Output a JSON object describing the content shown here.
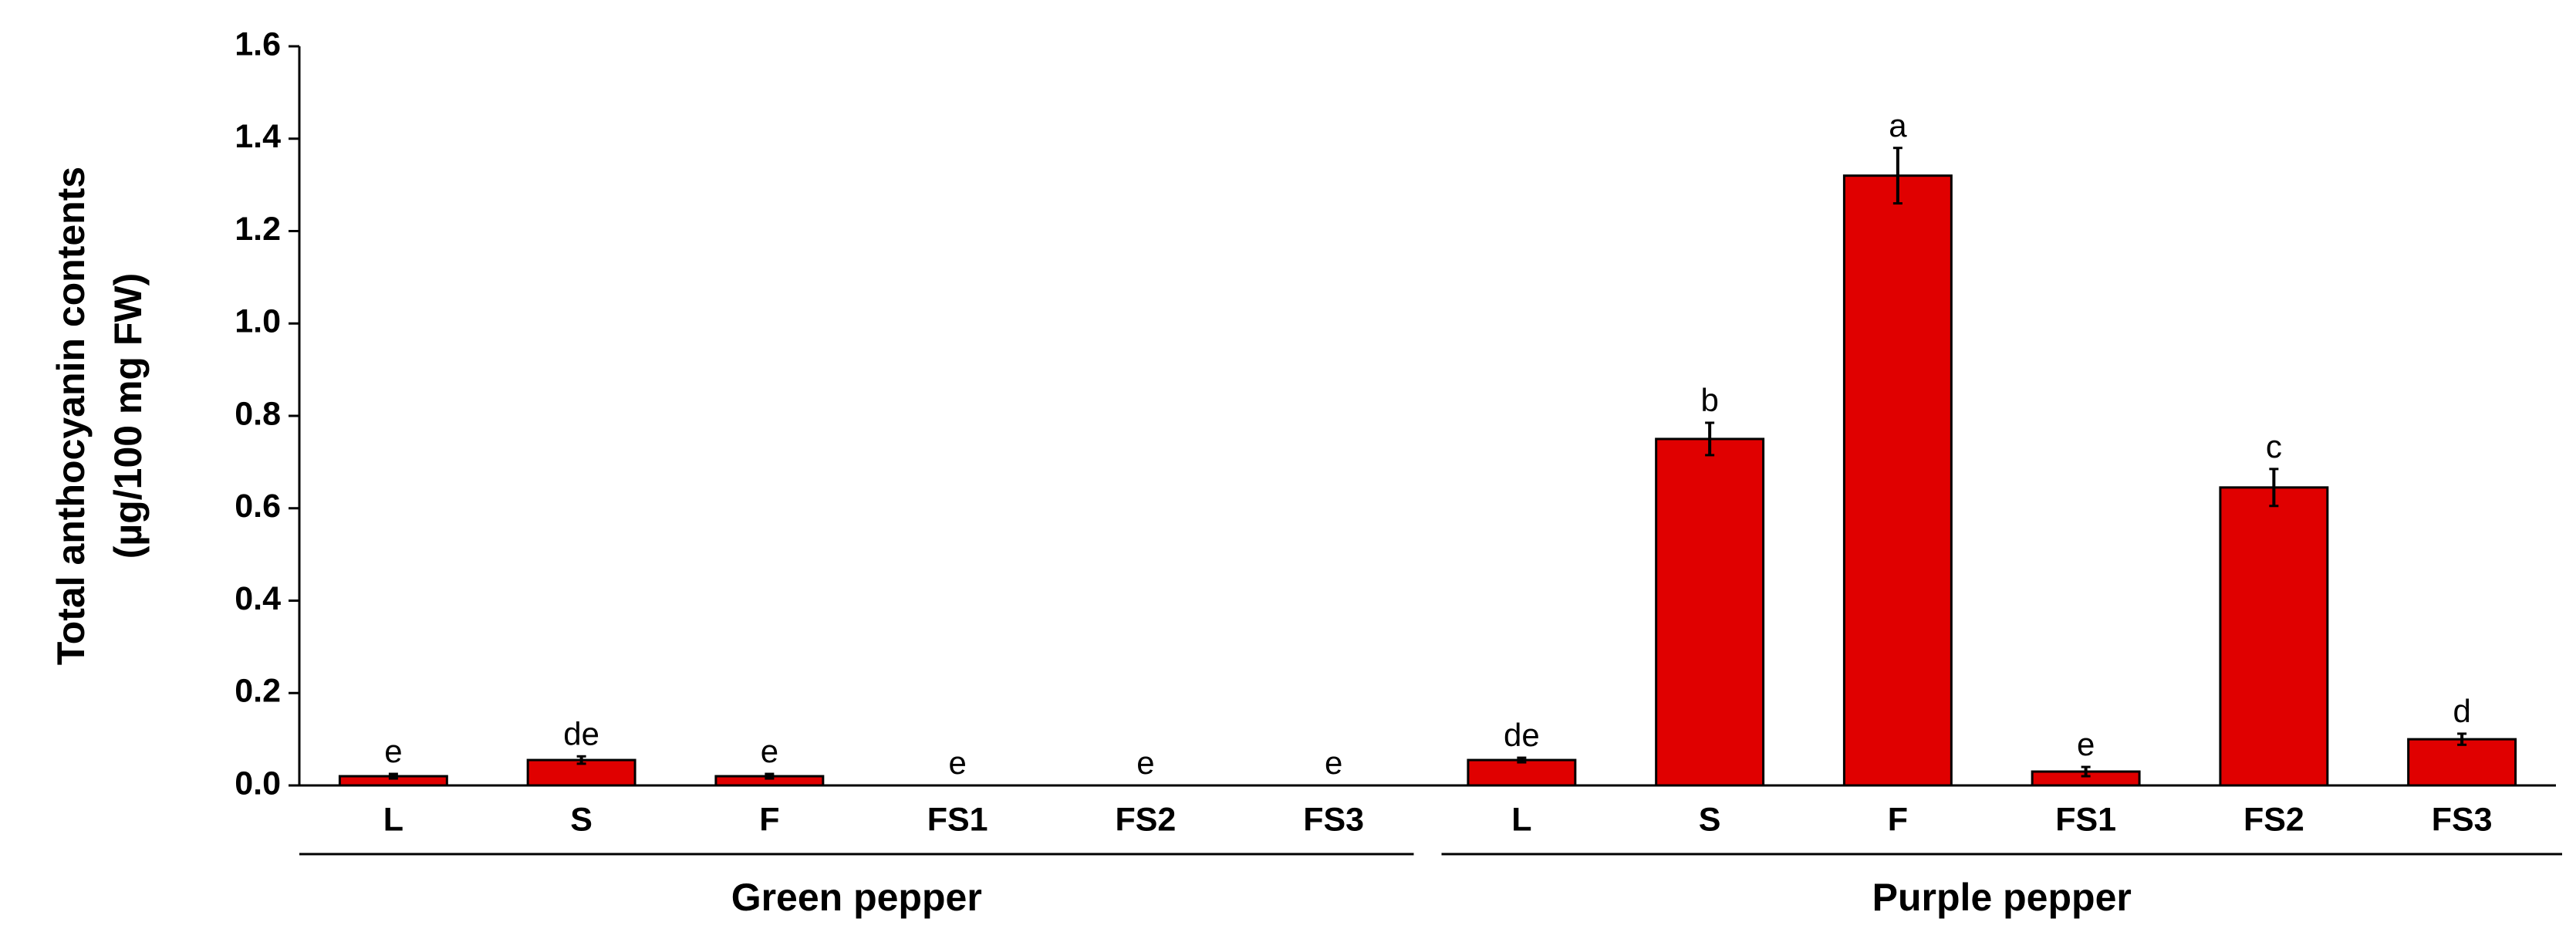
{
  "chart_data": {
    "type": "bar",
    "y_label_lines": [
      "Total anthocyanin contents",
      "(µg/100 mg FW)"
    ],
    "color": "#e00000",
    "ylim": [
      0,
      1.6
    ],
    "yticks": [
      {
        "value": 0,
        "label": "0.0"
      },
      {
        "value": 0.2,
        "label": "0.2"
      },
      {
        "value": 0.4,
        "label": "0.4"
      },
      {
        "value": 0.6,
        "label": "0.6"
      },
      {
        "value": 0.8,
        "label": "0.8"
      },
      {
        "value": 1.0,
        "label": "1.0"
      },
      {
        "value": 1.2,
        "label": "1.2"
      },
      {
        "value": 1.4,
        "label": "1.4"
      },
      {
        "value": 1.6,
        "label": "1.6"
      }
    ],
    "groups": [
      {
        "name": "Green pepper",
        "categories": [
          "L",
          "S",
          "F",
          "FS1",
          "FS2",
          "FS3"
        ],
        "values": [
          0.02,
          0.055,
          0.02,
          0,
          0,
          0
        ],
        "errors": [
          0.005,
          0.008,
          0.005,
          0,
          0,
          0
        ],
        "letters": [
          "e",
          "de",
          "e",
          "e",
          "e",
          "e"
        ]
      },
      {
        "name": "Purple pepper",
        "categories": [
          "L",
          "S",
          "F",
          "FS1",
          "FS2",
          "FS3"
        ],
        "values": [
          0.055,
          0.75,
          1.32,
          0.03,
          0.645,
          0.1
        ],
        "errors": [
          0.005,
          0.035,
          0.06,
          0.01,
          0.04,
          0.012
        ],
        "letters": [
          "de",
          "b",
          "a",
          "e",
          "c",
          "d"
        ]
      }
    ]
  }
}
